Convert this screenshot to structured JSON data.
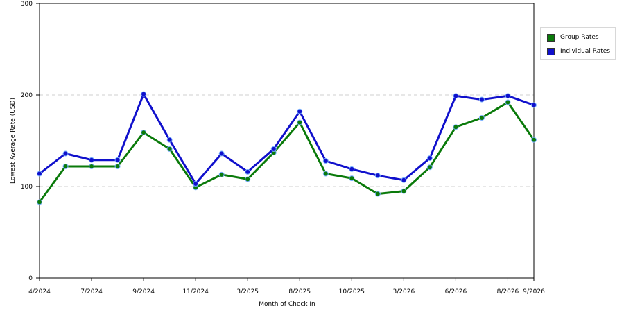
{
  "chart_data": {
    "type": "line",
    "xlabel": "Month of Check In",
    "ylabel": "Lowest Average Rate (USD)",
    "ylim": [
      0,
      300
    ],
    "yticks": [
      0,
      100,
      200,
      300
    ],
    "grid": "horizontal dashed",
    "legend_position": "top-right",
    "x_tick_labels": [
      {
        "index": 0,
        "label": "4/2024"
      },
      {
        "index": 2,
        "label": "7/2024"
      },
      {
        "index": 4,
        "label": "9/2024"
      },
      {
        "index": 6,
        "label": "11/2024"
      },
      {
        "index": 8,
        "label": "3/2025"
      },
      {
        "index": 10,
        "label": "8/2025"
      },
      {
        "index": 12,
        "label": "10/2025"
      },
      {
        "index": 14,
        "label": "3/2026"
      },
      {
        "index": 16,
        "label": "6/2026"
      },
      {
        "index": 18,
        "label": "8/2026"
      },
      {
        "index": 19,
        "label": "9/2026"
      }
    ],
    "point_count": 20,
    "series": [
      {
        "name": "Group Rates",
        "color": "#0a7a0a",
        "values": [
          83,
          122,
          122,
          122,
          159,
          141,
          99,
          113,
          108,
          137,
          170,
          114,
          109,
          92,
          95,
          121,
          165,
          175,
          192,
          151
        ]
      },
      {
        "name": "Individual Rates",
        "color": "#1010cc",
        "values": [
          114,
          136,
          129,
          129,
          201,
          151,
          103,
          136,
          116,
          141,
          182,
          128,
          119,
          112,
          107,
          131,
          199,
          195,
          199,
          189
        ]
      }
    ]
  }
}
